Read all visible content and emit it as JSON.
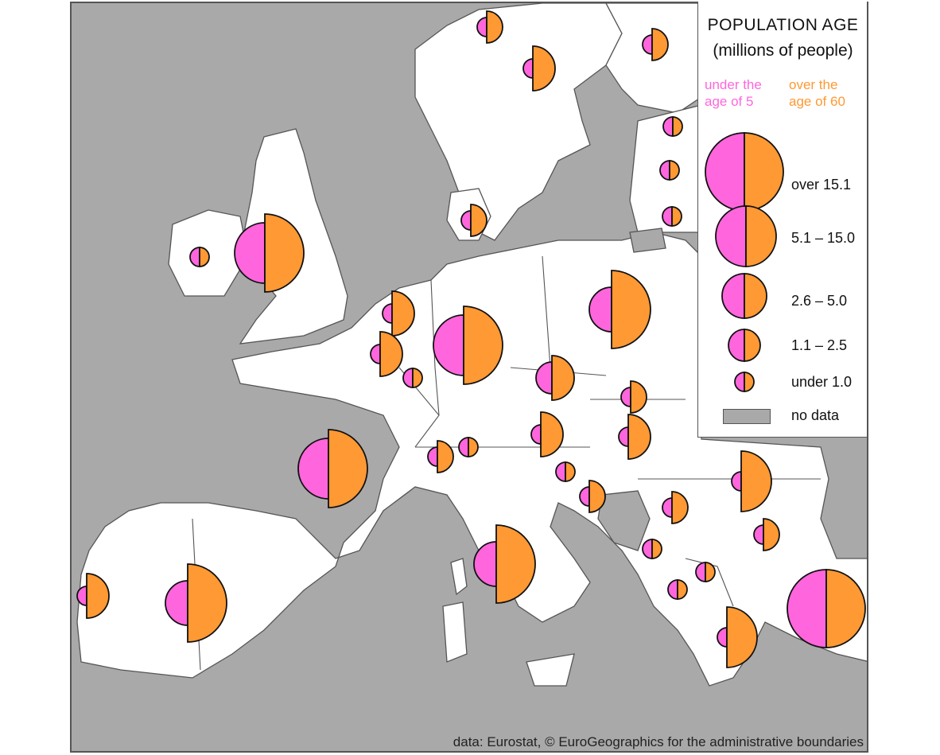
{
  "legend": {
    "title": "POPULATION  AGE",
    "subtitle": "(millions of people)",
    "under5_label_line1": "under the",
    "under5_label_line2": "age of 5",
    "over60_label_line1": "over the",
    "over60_label_line2": "age of 60",
    "classes": [
      {
        "label": "over 15.1",
        "class": 5
      },
      {
        "label": "5.1 – 15.0",
        "class": 4
      },
      {
        "label": "2.6 – 5.0",
        "class": 3
      },
      {
        "label": "1.1 – 2.5",
        "class": 2
      },
      {
        "label": "under 1.0",
        "class": 1
      }
    ],
    "no_data_label": "no data"
  },
  "colors": {
    "under5": "#ff66dd",
    "over60": "#ff9933",
    "land": "#ffffff",
    "no_data": "#a9a9a9",
    "sea": "#a9a9a9",
    "border": "#555555"
  },
  "map_data": {
    "type": "proportional-half-circles",
    "countries": [
      {
        "name": "Norway",
        "under5_class": 1,
        "over60_class": 2
      },
      {
        "name": "Sweden",
        "under5_class": 1,
        "over60_class": 3
      },
      {
        "name": "Finland",
        "under5_class": 1,
        "over60_class": 2
      },
      {
        "name": "Estonia",
        "under5_class": 1,
        "over60_class": 1
      },
      {
        "name": "Latvia",
        "under5_class": 1,
        "over60_class": 1
      },
      {
        "name": "Lithuania",
        "under5_class": 1,
        "over60_class": 1
      },
      {
        "name": "Denmark",
        "under5_class": 1,
        "over60_class": 2
      },
      {
        "name": "Ireland",
        "under5_class": 1,
        "over60_class": 1
      },
      {
        "name": "United Kingdom",
        "under5_class": 4,
        "over60_class": 5
      },
      {
        "name": "Netherlands",
        "under5_class": 1,
        "over60_class": 3
      },
      {
        "name": "Belgium",
        "under5_class": 1,
        "over60_class": 3
      },
      {
        "name": "Luxembourg",
        "under5_class": 1,
        "over60_class": 1
      },
      {
        "name": "Germany",
        "under5_class": 4,
        "over60_class": 5
      },
      {
        "name": "Poland",
        "under5_class": 3,
        "over60_class": 5
      },
      {
        "name": "Czechia",
        "under5_class": 2,
        "over60_class": 3
      },
      {
        "name": "Slovakia",
        "under5_class": 1,
        "over60_class": 2
      },
      {
        "name": "Austria",
        "under5_class": 1,
        "over60_class": 3
      },
      {
        "name": "Hungary",
        "under5_class": 1,
        "over60_class": 3
      },
      {
        "name": "Switzerland",
        "under5_class": 1,
        "over60_class": 2
      },
      {
        "name": "Liechtenstein",
        "under5_class": 1,
        "over60_class": 1
      },
      {
        "name": "France",
        "under5_class": 4,
        "over60_class": 5
      },
      {
        "name": "Slovenia",
        "under5_class": 1,
        "over60_class": 1
      },
      {
        "name": "Croatia",
        "under5_class": 1,
        "over60_class": 2
      },
      {
        "name": "Serbia",
        "under5_class": 1,
        "over60_class": 2
      },
      {
        "name": "Romania",
        "under5_class": 1,
        "over60_class": 4
      },
      {
        "name": "Bulgaria",
        "under5_class": 1,
        "over60_class": 2
      },
      {
        "name": "Montenegro",
        "under5_class": 1,
        "over60_class": 1
      },
      {
        "name": "North Macedonia",
        "under5_class": 1,
        "over60_class": 1
      },
      {
        "name": "Albania",
        "under5_class": 1,
        "over60_class": 1
      },
      {
        "name": "Italy",
        "under5_class": 3,
        "over60_class": 5
      },
      {
        "name": "Spain",
        "under5_class": 3,
        "over60_class": 5
      },
      {
        "name": "Portugal",
        "under5_class": 1,
        "over60_class": 3
      },
      {
        "name": "Greece",
        "under5_class": 1,
        "over60_class": 4
      },
      {
        "name": "Turkey",
        "under5_class": 5,
        "over60_class": 5
      }
    ],
    "no_data_countries": [
      "Russia (Kaliningrad)",
      "Belarus",
      "Ukraine",
      "Bosnia and Herzegovina"
    ]
  },
  "source": "data: Eurostat, © EuroGeographics for the administrative boundaries"
}
